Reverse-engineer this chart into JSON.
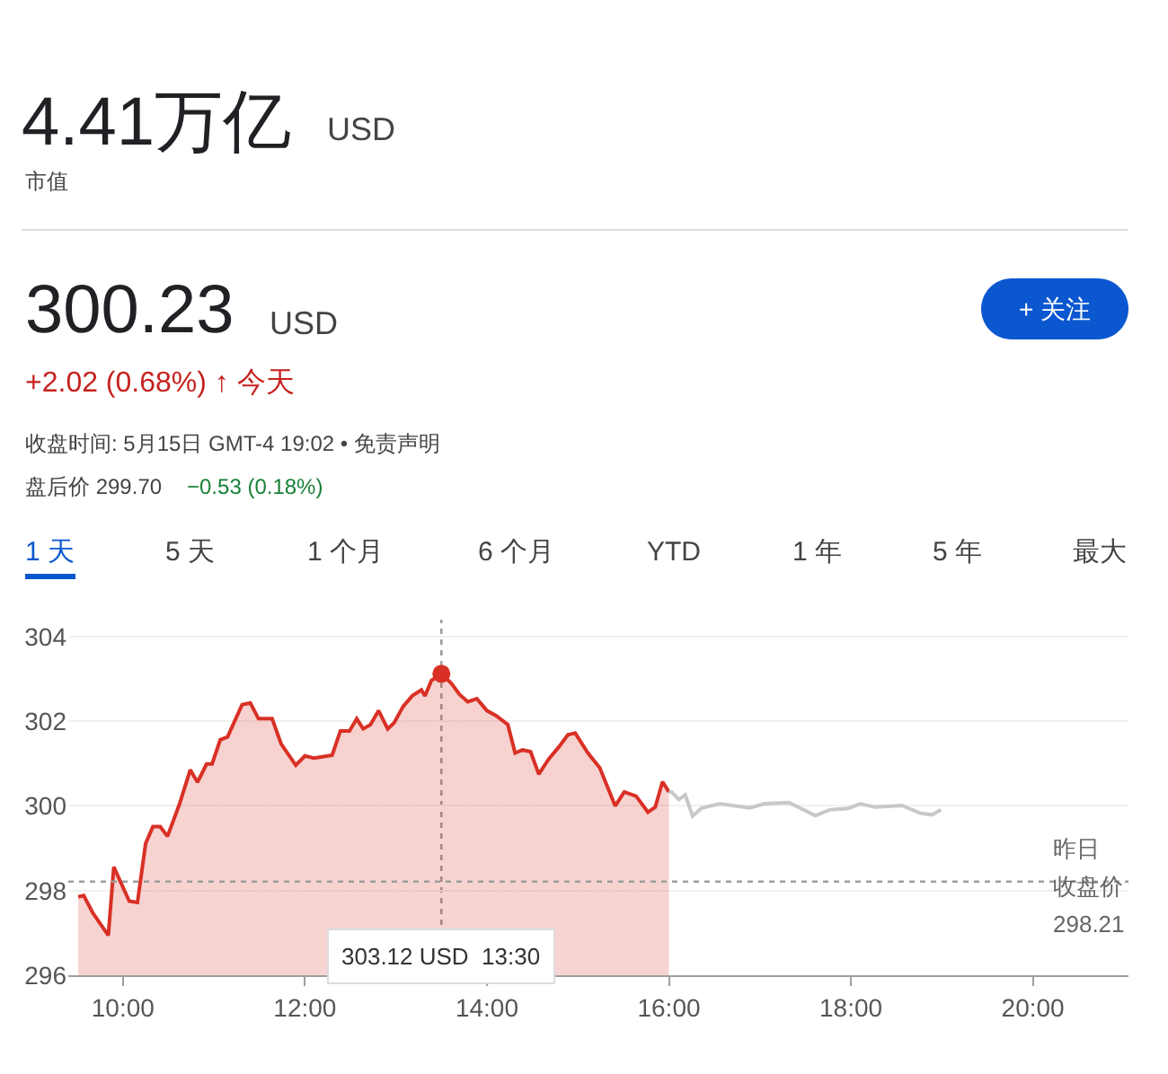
{
  "chart_data": {
    "type": "line",
    "title": "4.41万亿",
    "subtitle": "市值",
    "series": [
      {
        "type": "area",
        "color": "#d93025",
        "x": [
          9.51,
          9.57,
          9.67,
          9.84,
          9.9,
          10.07,
          10.16,
          10.25,
          10.33,
          10.41,
          10.49,
          10.62,
          10.74,
          10.82,
          10.92,
          10.98,
          11.07,
          11.15,
          11.31,
          11.4,
          11.49,
          11.64,
          11.74,
          11.9,
          12.0,
          12.1,
          12.3,
          12.39,
          12.49,
          12.57,
          12.64,
          12.72,
          12.81,
          12.91,
          12.98,
          13.08,
          13.18,
          13.28,
          13.32,
          13.39,
          13.5,
          13.61,
          13.7,
          13.79,
          13.89,
          14.0,
          14.1,
          14.23,
          14.31,
          14.39,
          14.48,
          14.57,
          14.68,
          14.79,
          14.89,
          14.97,
          15.11,
          15.24,
          15.41,
          15.51,
          15.64,
          15.77,
          15.85,
          15.93,
          16.0
        ],
        "values": [
          297.85,
          297.88,
          297.47,
          296.94,
          298.56,
          297.75,
          297.72,
          299.11,
          299.51,
          299.51,
          299.28,
          300.03,
          300.85,
          300.56,
          300.99,
          300.99,
          301.56,
          301.63,
          302.39,
          302.43,
          302.06,
          302.06,
          301.46,
          300.96,
          301.18,
          301.13,
          301.2,
          301.77,
          301.77,
          302.06,
          301.82,
          301.92,
          302.25,
          301.82,
          301.96,
          302.35,
          302.6,
          302.74,
          302.6,
          302.96,
          303.12,
          302.89,
          302.63,
          302.46,
          302.53,
          302.25,
          302.13,
          301.92,
          301.25,
          301.32,
          301.28,
          300.75,
          301.11,
          301.39,
          301.68,
          301.72,
          301.25,
          300.9,
          300.0,
          300.33,
          300.23,
          299.85,
          299.97,
          300.57,
          300.33
        ]
      },
      {
        "color": "#c8c8c8",
        "x": [
          16.0,
          16.03,
          16.11,
          16.18,
          16.26,
          16.36,
          16.56,
          16.89,
          17.05,
          17.32,
          17.48,
          17.61,
          17.77,
          17.97,
          18.1,
          18.27,
          18.56,
          18.76,
          18.89,
          18.99
        ],
        "values": [
          300.33,
          300.33,
          300.15,
          300.26,
          299.76,
          299.95,
          300.05,
          299.95,
          300.05,
          300.08,
          299.91,
          299.77,
          299.91,
          299.94,
          300.05,
          299.97,
          300.01,
          299.83,
          299.79,
          299.91
        ]
      },
      {
        "type": "scatter",
        "color": "#d93025",
        "marker": "circle",
        "x": [
          13.5
        ],
        "values": [
          303.12
        ]
      }
    ],
    "xlim": [
      9.4,
      21.05
    ],
    "xticks": [
      {
        "value": 10,
        "label": "10:00"
      },
      {
        "value": 12,
        "label": "12:00"
      },
      {
        "value": 14,
        "label": "14:00"
      },
      {
        "value": 16,
        "label": "16:00"
      },
      {
        "value": 18,
        "label": "18:00"
      },
      {
        "value": 20,
        "label": "20:00"
      }
    ],
    "ylim": [
      296,
      304.4
    ],
    "yticks": [
      296,
      298,
      300,
      302,
      304
    ],
    "grid": "y",
    "ref_lines": [
      {
        "axis": "y",
        "value": 298.21,
        "label": "298.21",
        "color": "#9e9e9e",
        "line_style": "dotted"
      },
      {
        "axis": "x",
        "value": 13.5,
        "label": null,
        "color": "#9e9e9e",
        "line_style": "dotted"
      }
    ],
    "annotations": [
      "USD",
      "300.23",
      "USD",
      "+ 关注",
      "+2.02 (0.68%) ↑ 今天",
      "收盘时间: 5月15日 GMT-4 19:02 • 免责声明",
      "盘后价 299.70",
      "−0.53 (0.18%)",
      "1 天",
      "5 天",
      "1 个月",
      "6 个月",
      "YTD",
      "1 年",
      "5 年",
      "最大",
      "昨日",
      "收盘价",
      "303.12 USD  13:30"
    ]
  }
}
